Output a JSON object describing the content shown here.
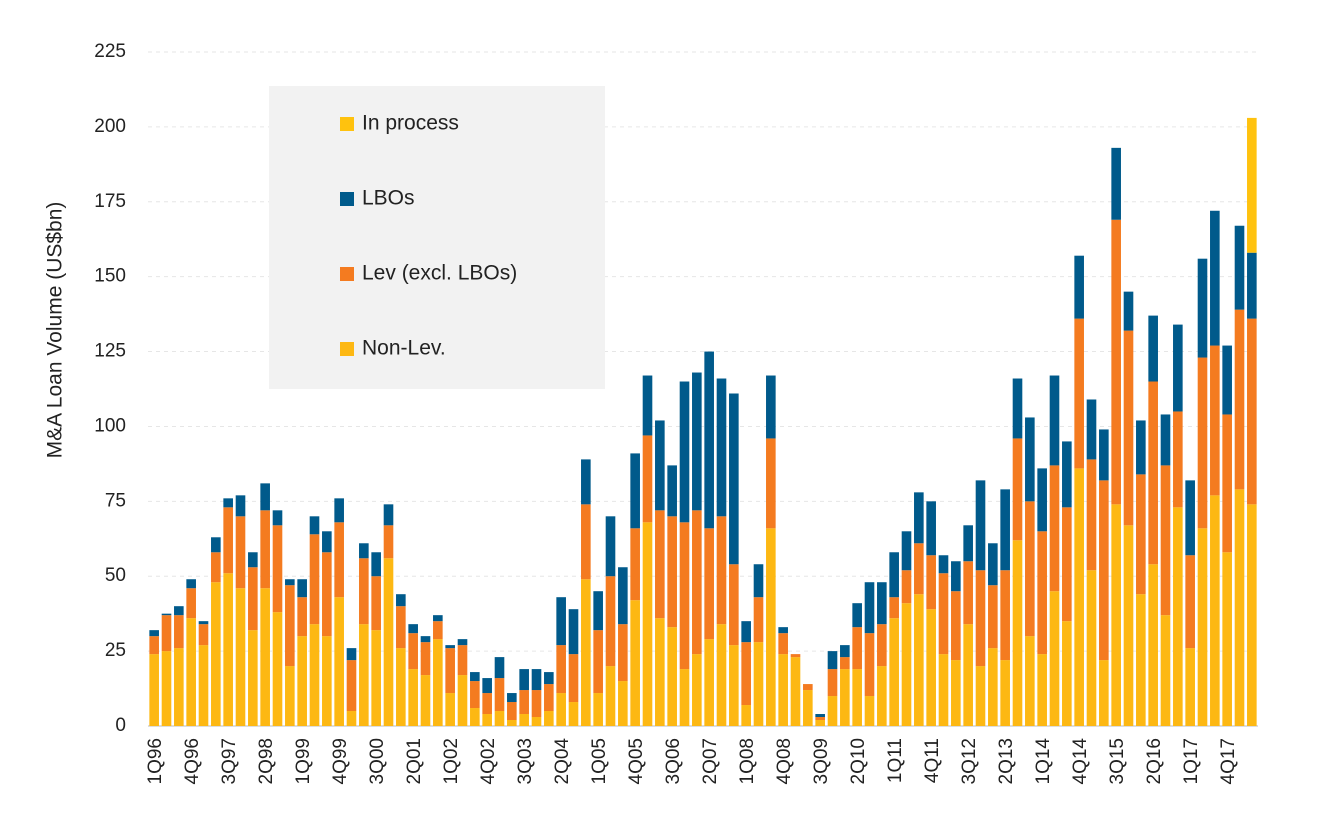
{
  "chart_data": {
    "type": "stacked_bar",
    "y_label": "M&A Loan Volume (US$bn)",
    "categories": [
      "1Q96",
      null,
      null,
      "4Q96",
      null,
      null,
      "3Q97",
      null,
      null,
      "2Q98",
      null,
      null,
      "1Q99",
      null,
      null,
      "4Q99",
      null,
      null,
      "3Q00",
      null,
      null,
      "2Q01",
      null,
      null,
      "1Q02",
      null,
      null,
      "4Q02",
      null,
      null,
      "3Q03",
      null,
      null,
      "2Q04",
      null,
      null,
      "1Q05",
      null,
      null,
      "4Q05",
      null,
      null,
      "3Q06",
      null,
      null,
      "2Q07",
      null,
      null,
      "1Q08",
      null,
      null,
      "4Q08",
      null,
      null,
      "3Q09",
      null,
      null,
      "2Q10",
      null,
      null,
      "1Q11",
      null,
      null,
      "4Q11",
      null,
      null,
      "3Q12",
      null,
      null,
      "2Q13",
      null,
      null,
      "1Q14",
      null,
      null,
      "4Q14",
      null,
      null,
      "3Q15",
      null,
      null,
      "2Q16",
      null,
      null,
      "1Q17",
      null,
      null,
      "4Q17",
      null,
      null
    ],
    "series": [
      {
        "name": "Non-Lev.",
        "color": "#fdb813",
        "values": [
          24,
          25,
          26,
          36,
          27,
          48,
          51,
          46,
          32,
          46,
          38,
          20,
          30,
          34,
          30,
          43,
          5,
          34,
          32,
          56,
          26,
          19,
          17,
          29,
          11,
          17,
          6,
          4,
          5,
          2,
          4,
          3,
          5,
          11,
          8,
          49,
          11,
          20,
          15,
          42,
          68,
          36,
          33,
          19,
          24,
          29,
          34,
          27,
          7,
          28,
          66,
          24,
          23,
          12,
          2,
          10,
          19,
          19,
          10,
          20,
          36,
          41,
          44,
          39,
          24,
          22,
          34,
          20,
          26,
          22,
          62,
          30,
          24,
          45,
          35,
          86,
          52,
          22,
          74,
          67,
          44,
          54,
          37,
          73,
          26,
          66,
          77,
          58,
          79,
          74
        ]
      },
      {
        "name": "Lev (excl. LBOs)",
        "color": "#f47b20",
        "values": [
          6,
          12,
          11,
          10,
          7,
          10,
          22,
          24,
          21,
          26,
          29,
          27,
          13,
          30,
          28,
          25,
          17,
          22,
          18,
          11,
          14,
          12,
          11,
          6,
          15,
          10,
          9,
          7,
          11,
          6,
          8,
          9,
          9,
          16,
          16,
          25,
          21,
          30,
          19,
          24,
          29,
          36,
          37,
          49,
          48,
          37,
          36,
          27,
          21,
          15,
          30,
          7,
          1,
          2,
          1,
          9,
          4,
          14,
          21,
          14,
          7,
          11,
          17,
          18,
          27,
          23,
          21,
          32,
          21,
          30,
          34,
          45,
          41,
          42,
          38,
          50,
          37,
          60,
          95,
          65,
          40,
          61,
          50,
          32,
          31,
          57,
          50,
          46,
          60,
          62
        ]
      },
      {
        "name": "LBOs",
        "color": "#005a8b",
        "values": [
          2,
          0.5,
          3,
          3,
          1,
          5,
          3,
          7,
          5,
          9,
          5,
          2,
          6,
          6,
          7,
          8,
          4,
          5,
          8,
          7,
          4,
          3,
          2,
          2,
          1,
          2,
          3,
          5,
          7,
          3,
          7,
          7,
          4,
          16,
          15,
          15,
          13,
          20,
          19,
          25,
          20,
          30,
          17,
          47,
          46,
          59,
          46,
          57,
          7,
          11,
          21,
          2,
          0,
          0,
          1,
          6,
          4,
          8,
          17,
          14,
          15,
          13,
          17,
          18,
          6,
          10,
          12,
          30,
          14,
          27,
          20,
          28,
          21,
          30,
          22,
          21,
          20,
          17,
          24,
          13,
          18,
          22,
          17,
          29,
          25,
          33,
          45,
          23,
          28,
          22
        ]
      },
      {
        "name": "In process",
        "color": "#ffc20e",
        "values": [
          null,
          null,
          null,
          null,
          null,
          null,
          null,
          null,
          null,
          null,
          null,
          null,
          null,
          null,
          null,
          null,
          null,
          null,
          null,
          null,
          null,
          null,
          null,
          null,
          null,
          null,
          null,
          null,
          null,
          null,
          null,
          null,
          null,
          null,
          null,
          null,
          null,
          null,
          null,
          null,
          null,
          null,
          null,
          null,
          null,
          null,
          null,
          null,
          null,
          null,
          null,
          null,
          null,
          null,
          null,
          null,
          null,
          null,
          null,
          null,
          null,
          null,
          null,
          null,
          null,
          null,
          null,
          null,
          null,
          null,
          null,
          null,
          null,
          null,
          null,
          null,
          null,
          null,
          null,
          null,
          null,
          null,
          null,
          null,
          null,
          null,
          null,
          null,
          null,
          45
        ]
      }
    ],
    "ylim": [
      0,
      225
    ],
    "yticks": [
      0,
      25,
      50,
      75,
      100,
      125,
      150,
      175,
      200,
      225
    ],
    "grid": true
  }
}
